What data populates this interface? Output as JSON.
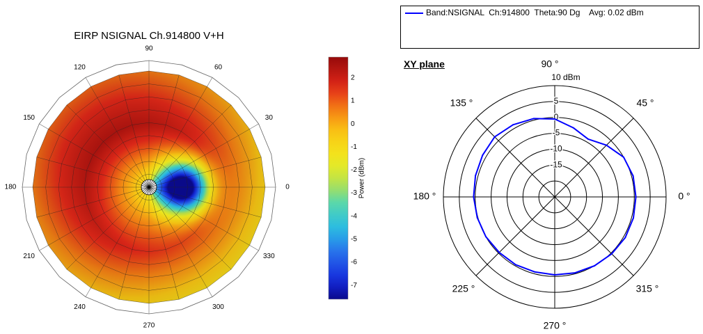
{
  "chart_data": [
    {
      "type": "heatmap",
      "subtype": "polar",
      "title": "EIRP NSIGNAL Ch.914800 V+H",
      "angle_ticks": [
        "90",
        "60",
        "30",
        "0",
        "330",
        "300",
        "270",
        "240",
        "210",
        "180",
        "150",
        "120"
      ],
      "colorbar": {
        "label": "Power (dBm)",
        "ticks": [
          "2",
          "1",
          "0",
          "-1",
          "-2",
          "-3",
          "-4",
          "-5",
          "-6",
          "-7"
        ],
        "range": [
          -7.6,
          2.9
        ]
      }
    },
    {
      "type": "line",
      "subtype": "polar",
      "title": "XY plane",
      "legend": "Band:NSIGNAL  Ch:914800  Theta:90 Dg    Avg: 0.02 dBm",
      "series_color": "#0000ff",
      "radial_unit": "10 dBm",
      "radial_ticks": [
        "5",
        "0",
        "-5",
        "-10",
        "-15"
      ],
      "radial_range": [
        -25,
        10
      ],
      "angle_labels": [
        "90 °",
        "45 °",
        "0 °",
        "315 °",
        "270 °",
        "225 °",
        "180 °",
        "135 °"
      ],
      "series": [
        {
          "theta": [
            0,
            15,
            30,
            45,
            60,
            75,
            90,
            105,
            120,
            135,
            150,
            165,
            180,
            195,
            210,
            225,
            240,
            255,
            270,
            285,
            300,
            315,
            330,
            345
          ],
          "values": [
            0.5,
            0.5,
            0,
            -2,
            -4,
            -2.5,
            -0.5,
            0.5,
            1.2,
            1.7,
            1.2,
            0.8,
            0.5,
            0.2,
            0,
            -0.3,
            -0.4,
            -0.6,
            -0.5,
            -0.3,
            0,
            0.3,
            0.6,
            0.6
          ]
        }
      ]
    }
  ]
}
